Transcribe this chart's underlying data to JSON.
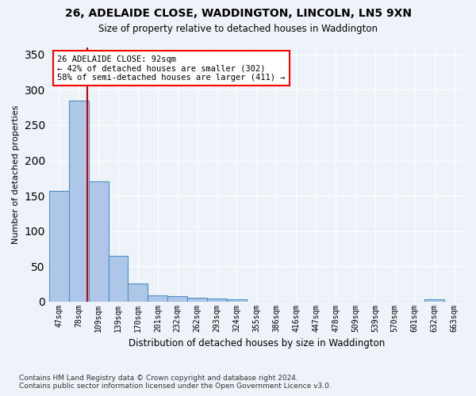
{
  "title_line1": "26, ADELAIDE CLOSE, WADDINGTON, LINCOLN, LN5 9XN",
  "title_line2": "Size of property relative to detached houses in Waddington",
  "xlabel": "Distribution of detached houses by size in Waddington",
  "ylabel": "Number of detached properties",
  "bins": [
    "47sqm",
    "78sqm",
    "109sqm",
    "139sqm",
    "170sqm",
    "201sqm",
    "232sqm",
    "262sqm",
    "293sqm",
    "324sqm",
    "355sqm",
    "386sqm",
    "416sqm",
    "447sqm",
    "478sqm",
    "509sqm",
    "539sqm",
    "570sqm",
    "601sqm",
    "632sqm",
    "663sqm"
  ],
  "values": [
    157,
    285,
    170,
    65,
    25,
    9,
    7,
    5,
    4,
    3,
    0,
    0,
    0,
    0,
    0,
    0,
    0,
    0,
    0,
    3,
    0
  ],
  "bar_color": "#aec6e8",
  "bar_edge_color": "#4a90c4",
  "red_line_x": 1.45,
  "annotation_text": "26 ADELAIDE CLOSE: 92sqm\n← 42% of detached houses are smaller (302)\n58% of semi-detached houses are larger (411) →",
  "annotation_box_color": "white",
  "annotation_box_edge_color": "red",
  "red_line_color": "#cc0000",
  "ylim": [
    0,
    360
  ],
  "yticks": [
    0,
    50,
    100,
    150,
    200,
    250,
    300,
    350
  ],
  "footnote": "Contains HM Land Registry data © Crown copyright and database right 2024.\nContains public sector information licensed under the Open Government Licence v3.0.",
  "background_color": "#eef3f9",
  "grid_color": "white",
  "figsize": [
    6.0,
    5.0
  ],
  "dpi": 100
}
